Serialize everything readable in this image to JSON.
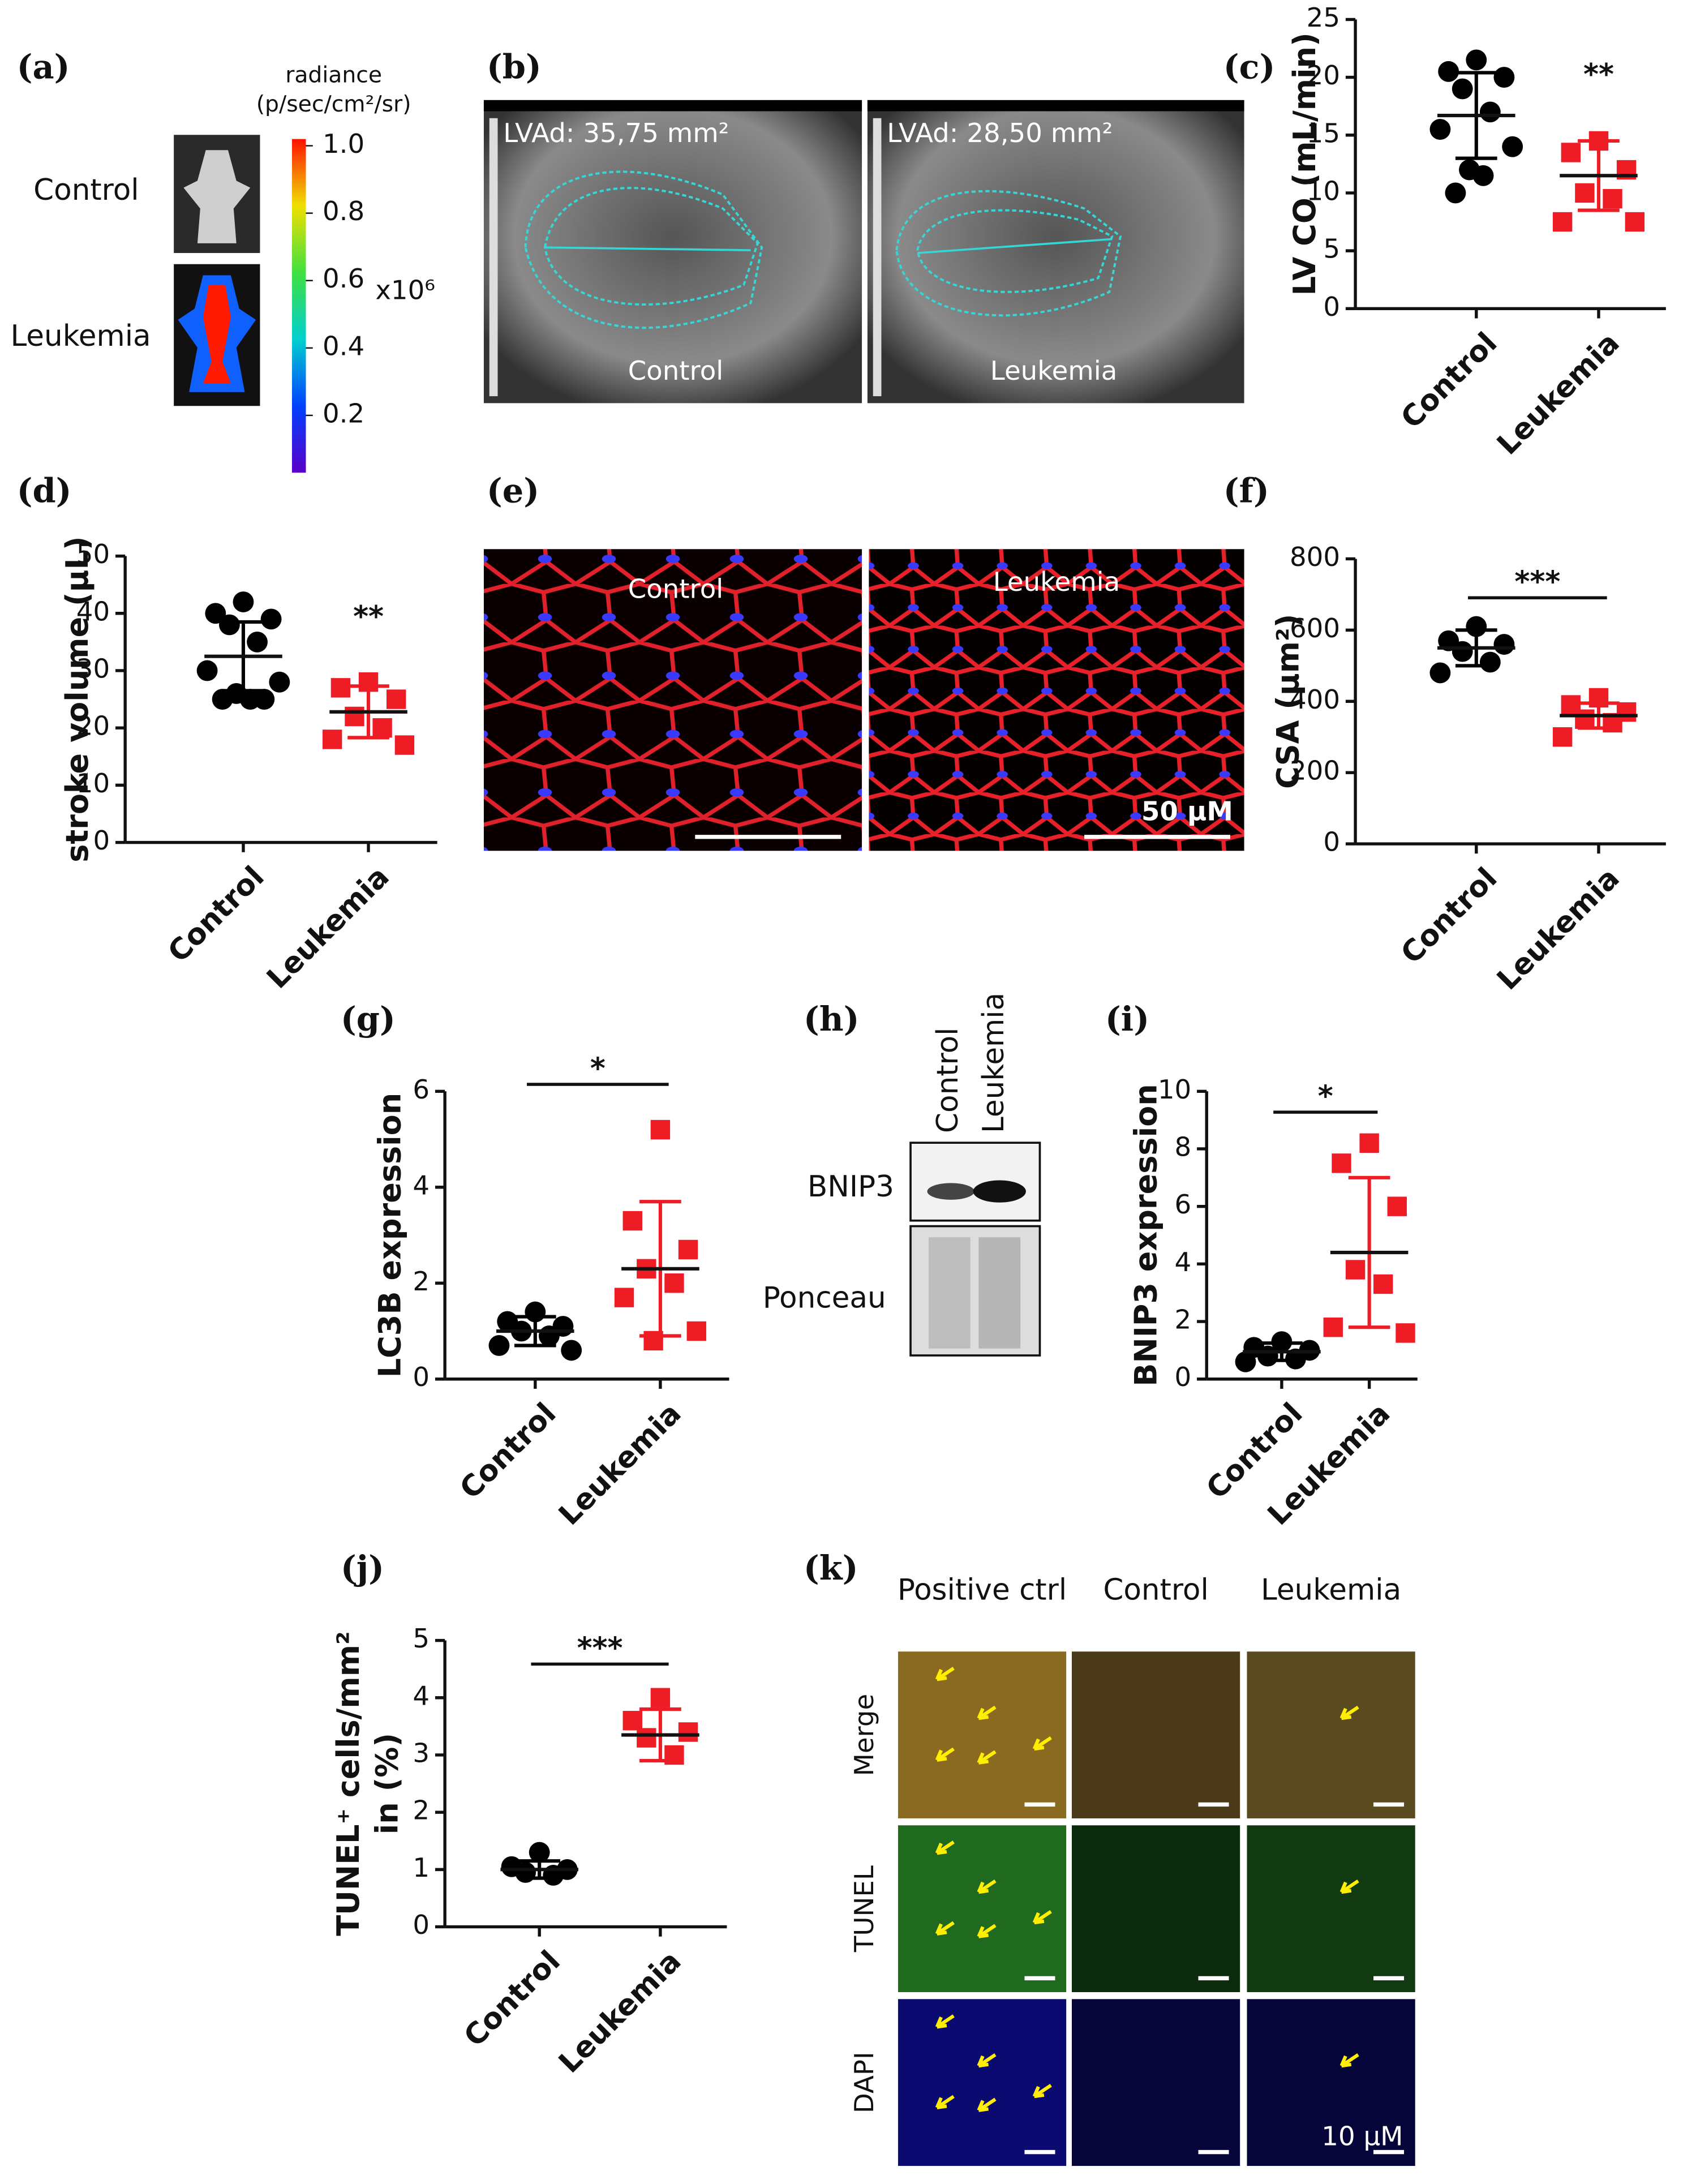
{
  "chart_data": [
    {
      "type": "dotplot",
      "panel": "(c)",
      "y_label": "LV CO (mL/min)",
      "categories": [
        "Control",
        "Leukemia"
      ],
      "ylim": [
        0,
        25
      ],
      "yticks": [
        0,
        5,
        10,
        15,
        20,
        25
      ],
      "groups": [
        {
          "color": "#000000",
          "marker": "circle",
          "points": [
            21.5,
            20.5,
            20,
            19,
            17,
            15.5,
            14,
            12,
            11.5,
            10
          ],
          "mean": 16.7,
          "sd": 3.7
        },
        {
          "color": "#ee1c25",
          "marker": "square",
          "points": [
            14.5,
            13.5,
            12,
            10,
            9.5,
            7.5,
            7.5
          ],
          "mean": 11.5,
          "sd": 3
        }
      ],
      "annotation": {
        "text": "**",
        "bracket": false
      }
    },
    {
      "type": "dotplot",
      "panel": "(d)",
      "y_label": "stroke volume (µL)",
      "categories": [
        "Control",
        "Leukemia"
      ],
      "ylim": [
        0,
        50
      ],
      "yticks": [
        0,
        10,
        20,
        30,
        40,
        50
      ],
      "groups": [
        {
          "color": "#000000",
          "marker": "circle",
          "points": [
            42,
            40,
            39,
            38,
            35,
            30,
            28,
            26,
            25,
            25,
            25
          ],
          "mean": 32.5,
          "sd": 6
        },
        {
          "color": "#ee1c25",
          "marker": "square",
          "points": [
            28,
            27,
            25,
            22,
            20,
            18,
            17
          ],
          "mean": 22.8,
          "sd": 4.5
        }
      ],
      "annotation": {
        "text": "**",
        "bracket": false
      }
    },
    {
      "type": "dotplot",
      "panel": "(f)",
      "y_label": "CSA  (µm²)",
      "categories": [
        "Control",
        "Leukemia"
      ],
      "ylim": [
        0,
        800
      ],
      "yticks": [
        0,
        200,
        400,
        600,
        800
      ],
      "groups": [
        {
          "color": "#000000",
          "marker": "circle",
          "points": [
            610,
            570,
            560,
            540,
            510,
            480
          ],
          "mean": 550,
          "sd": 50
        },
        {
          "color": "#ee1c25",
          "marker": "square",
          "points": [
            410,
            390,
            370,
            350,
            340,
            300
          ],
          "mean": 360,
          "sd": 35
        }
      ],
      "annotation": {
        "text": "***",
        "bracket": true
      }
    },
    {
      "type": "dotplot",
      "panel": "(g)",
      "y_label": "LC3B expression",
      "categories": [
        "Control",
        "Leukemia"
      ],
      "ylim": [
        0,
        6
      ],
      "yticks": [
        0,
        2,
        4,
        6
      ],
      "groups": [
        {
          "color": "#000000",
          "marker": "circle",
          "points": [
            1.4,
            1.2,
            1.1,
            1.0,
            0.9,
            0.7,
            0.6
          ],
          "mean": 1.0,
          "sd": 0.3
        },
        {
          "color": "#ee1c25",
          "marker": "square",
          "points": [
            5.2,
            3.3,
            2.7,
            2.3,
            2.0,
            1.7,
            1.0,
            0.8
          ],
          "mean": 2.3,
          "sd": 1.4
        }
      ],
      "annotation": {
        "text": "*",
        "bracket": true
      }
    },
    {
      "type": "dotplot",
      "panel": "(i)",
      "y_label": "BNIP3 expression",
      "categories": [
        "Control",
        "Leukemia"
      ],
      "ylim": [
        0,
        10
      ],
      "yticks": [
        0,
        2,
        4,
        6,
        8,
        10
      ],
      "groups": [
        {
          "color": "#000000",
          "marker": "circle",
          "points": [
            1.3,
            1.1,
            1.0,
            0.8,
            0.7,
            0.6
          ],
          "mean": 0.95,
          "sd": 0.3
        },
        {
          "color": "#ee1c25",
          "marker": "square",
          "points": [
            8.2,
            7.5,
            6.0,
            3.8,
            3.3,
            1.8,
            1.6
          ],
          "mean": 4.4,
          "sd": 2.6
        }
      ],
      "annotation": {
        "text": "*",
        "bracket": true
      }
    },
    {
      "type": "dotplot",
      "panel": "(j)",
      "y_label": [
        "TUNEL⁺ cells/mm²",
        "in (%)"
      ],
      "categories": [
        "Control",
        "Leukemia"
      ],
      "ylim": [
        0,
        5
      ],
      "yticks": [
        0,
        1,
        2,
        3,
        4,
        5
      ],
      "groups": [
        {
          "color": "#000000",
          "marker": "circle",
          "points": [
            1.3,
            1.05,
            1.0,
            0.95,
            0.9
          ],
          "mean": 1.0,
          "sd": 0.15
        },
        {
          "color": "#ee1c25",
          "marker": "square",
          "points": [
            4.0,
            3.6,
            3.4,
            3.3,
            3.0
          ],
          "mean": 3.35,
          "sd": 0.45
        }
      ],
      "annotation": {
        "text": "***",
        "bracket": true
      }
    }
  ],
  "panels": {
    "a": {
      "label": "(a)",
      "rows": [
        "Control",
        "Leukemia"
      ],
      "colorbar_title": [
        "radiance",
        "(p/sec/cm²/sr)"
      ],
      "clim": [
        0.03,
        1.02
      ],
      "colorbar_ticks": [
        {
          "value": 1,
          "label": "1.0"
        },
        {
          "value": 0.8,
          "label": "0.8"
        },
        {
          "value": 0.6,
          "label": "0.6"
        },
        {
          "value": 0.4,
          "label": "0.4"
        },
        {
          "value": 0.2,
          "label": "0.2"
        }
      ],
      "colorbar_unit": "x10⁶"
    },
    "b": {
      "label": "(b)",
      "images": [
        {
          "measure": "LVAd: 35,75 mm²",
          "caption": "Control"
        },
        {
          "measure": "LVAd: 28,50 mm²",
          "caption": "Leukemia"
        }
      ]
    },
    "e": {
      "label": "(e)",
      "captions": [
        "Control",
        "Leukemia"
      ],
      "scale": "50 µM"
    },
    "h": {
      "label": "(h)",
      "columns": [
        "Control",
        "Leukemia"
      ],
      "rows": [
        "BNIP3",
        "Ponceau"
      ]
    },
    "k": {
      "label": "(k)",
      "columns": [
        "Positive ctrl",
        "Control",
        "Leukemia"
      ],
      "rows": [
        "Merge",
        "TUNEL",
        "DAPI"
      ],
      "scale": "10 µM"
    }
  }
}
